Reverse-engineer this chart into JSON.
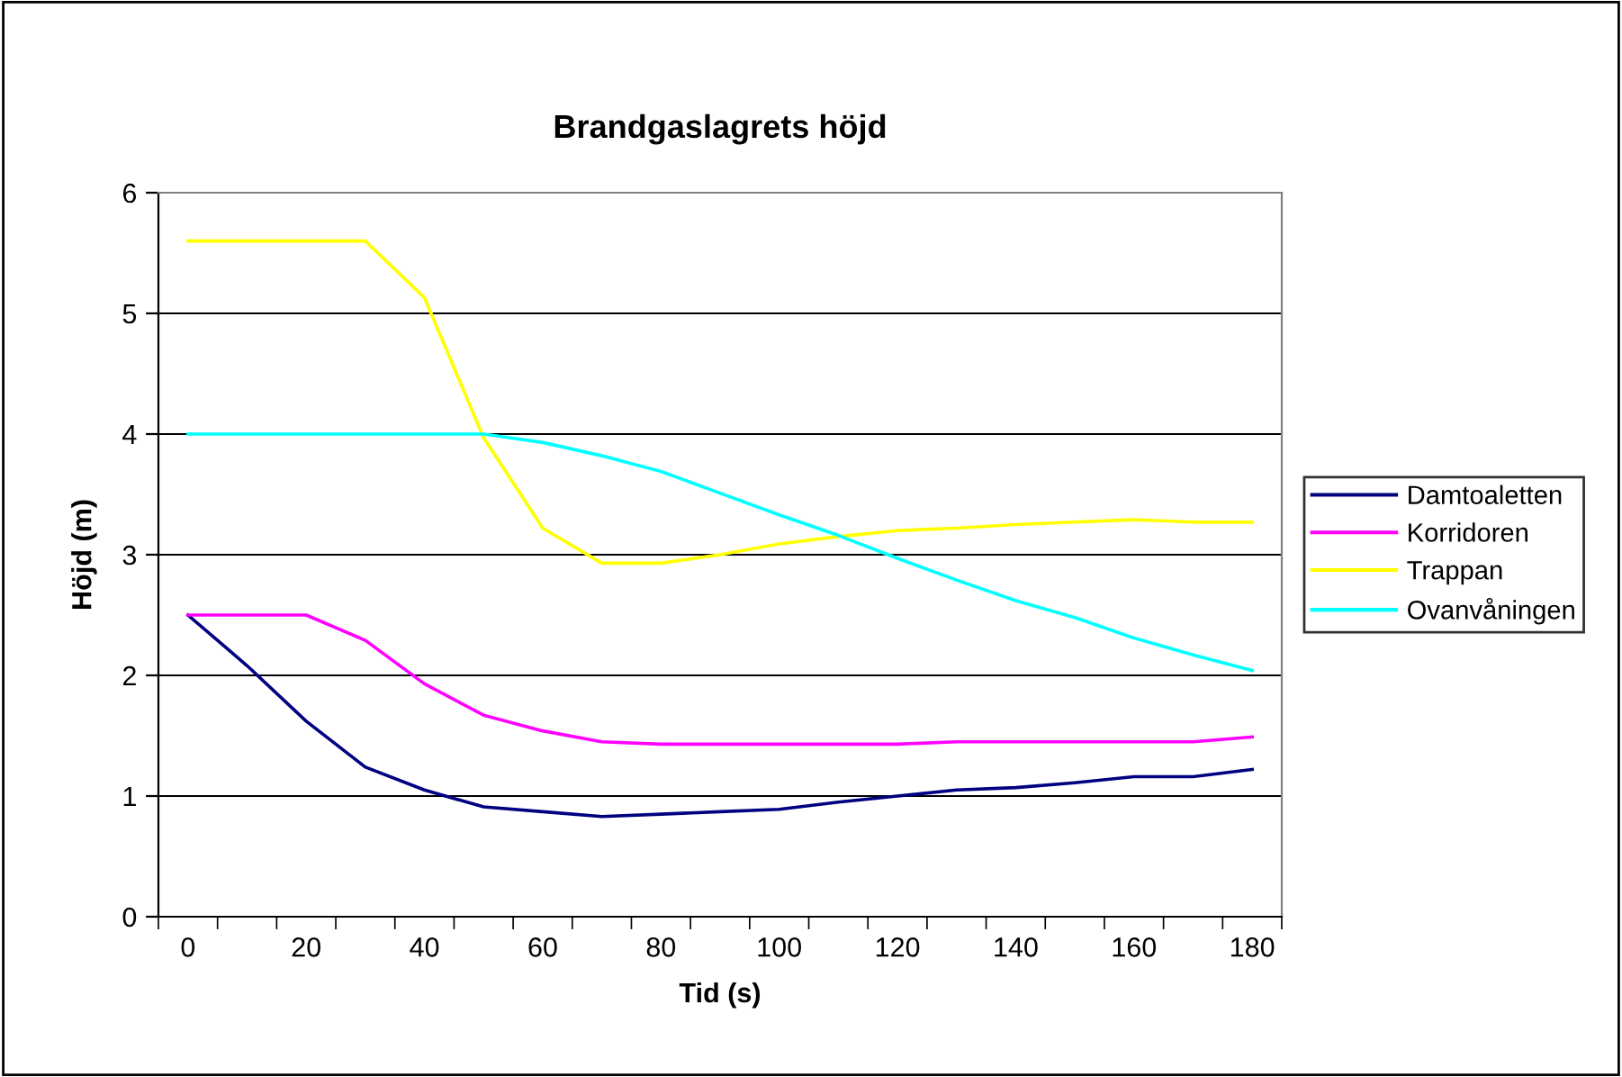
{
  "chart_data": {
    "type": "line",
    "title": "Brandgaslagrets höjd",
    "xlabel": "Tid (s)",
    "ylabel": "Höjd (m)",
    "categories": [
      "0",
      null,
      "20",
      null,
      "40",
      null,
      "60",
      null,
      "80",
      null,
      "100",
      null,
      "120",
      null,
      "140",
      null,
      "160",
      null,
      "180"
    ],
    "series": [
      {
        "name": "Damtoaletten",
        "color": "#000080",
        "values": [
          2.5,
          2.08,
          1.62,
          1.24,
          1.05,
          0.91,
          0.87,
          0.83,
          0.85,
          0.87,
          0.89,
          0.95,
          1.0,
          1.05,
          1.07,
          1.11,
          1.16,
          1.16,
          1.22
        ]
      },
      {
        "name": "Korridoren",
        "color": "#ff00ff",
        "values": [
          2.5,
          2.5,
          2.5,
          2.29,
          1.93,
          1.67,
          1.54,
          1.45,
          1.43,
          1.43,
          1.43,
          1.43,
          1.43,
          1.45,
          1.45,
          1.45,
          1.45,
          1.45,
          1.49
        ]
      },
      {
        "name": "Trappan",
        "color": "#ffff00",
        "values": [
          5.6,
          5.6,
          5.6,
          5.6,
          5.13,
          3.97,
          3.22,
          2.93,
          2.93,
          3.0,
          3.09,
          3.15,
          3.2,
          3.22,
          3.25,
          3.27,
          3.29,
          3.27,
          3.27
        ]
      },
      {
        "name": "Ovanvåningen",
        "color": "#00ffff",
        "values": [
          4,
          4,
          4,
          4,
          4,
          4,
          3.93,
          3.82,
          3.69,
          3.51,
          3.33,
          3.16,
          2.97,
          2.79,
          2.62,
          2.48,
          2.31,
          2.17,
          2.04
        ]
      }
    ],
    "ylim": [
      0,
      6
    ],
    "yticks": [
      0,
      1,
      2,
      3,
      4,
      5,
      6
    ],
    "grid": "y",
    "legend": "right",
    "marker": "none",
    "line_style": "solid"
  }
}
